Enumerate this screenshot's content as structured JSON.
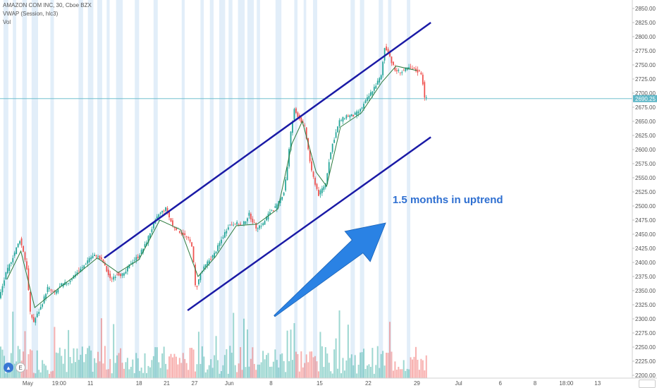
{
  "header": {
    "symbol": "AMAZON COM INC, 30, Cboe BZX",
    "indicator": "VWAP (Session, hlc3)",
    "volume": "Vol"
  },
  "price_tag": "2690.25",
  "annotation": "1.5 months in uptrend",
  "colors": {
    "up": "#26a69a",
    "down": "#ef5350",
    "trendline": "#1a1aa6",
    "arrow": "#2a82e4",
    "vwap": "#2b7a3d",
    "price_line": "#5fb7c7",
    "session_band": "#dbeaf7"
  },
  "chart_data": {
    "type": "candlestick",
    "y_axis": {
      "ticks": [
        "2850.00",
        "2825.00",
        "2800.00",
        "2775.00",
        "2750.00",
        "2725.00",
        "2700.00",
        "2675.00",
        "2650.00",
        "2625.00",
        "2600.00",
        "2575.00",
        "2550.00",
        "2525.00",
        "2500.00",
        "2475.00",
        "2450.00",
        "2425.00",
        "2400.00",
        "2375.00",
        "2350.00",
        "2325.00",
        "2300.00",
        "2275.00",
        "2250.00",
        "2225.00",
        "2200.00"
      ],
      "range": [
        2195,
        2865
      ]
    },
    "x_axis": {
      "ticks": [
        {
          "label": "May",
          "t": 4
        },
        {
          "label": "19:00",
          "t": 8.5
        },
        {
          "label": "11",
          "t": 13
        },
        {
          "label": "18",
          "t": 20
        },
        {
          "label": "21",
          "t": 24
        },
        {
          "label": "27",
          "t": 28
        },
        {
          "label": "Jun",
          "t": 33
        },
        {
          "label": "8",
          "t": 39
        },
        {
          "label": "15",
          "t": 46
        },
        {
          "label": "22",
          "t": 53
        },
        {
          "label": "29",
          "t": 60
        },
        {
          "label": "Jul",
          "t": 66
        },
        {
          "label": "6",
          "t": 72
        },
        {
          "label": "8",
          "t": 77
        },
        {
          "label": "18:00",
          "t": 81.5
        },
        {
          "label": "13",
          "t": 86
        }
      ],
      "range": [
        0,
        91
      ]
    },
    "price_path": [
      {
        "t": 0,
        "p": 2335
      },
      {
        "t": 1,
        "p": 2380
      },
      {
        "t": 2,
        "p": 2410
      },
      {
        "t": 3,
        "p": 2440
      },
      {
        "t": 3.5,
        "p": 2420
      },
      {
        "t": 4,
        "p": 2390
      },
      {
        "t": 4.5,
        "p": 2310
      },
      {
        "t": 5,
        "p": 2295
      },
      {
        "t": 6,
        "p": 2320
      },
      {
        "t": 7,
        "p": 2355
      },
      {
        "t": 8,
        "p": 2345
      },
      {
        "t": 9,
        "p": 2360
      },
      {
        "t": 10,
        "p": 2365
      },
      {
        "t": 11,
        "p": 2380
      },
      {
        "t": 12,
        "p": 2390
      },
      {
        "t": 13,
        "p": 2408
      },
      {
        "t": 14,
        "p": 2413
      },
      {
        "t": 15,
        "p": 2400
      },
      {
        "t": 16,
        "p": 2370
      },
      {
        "t": 17,
        "p": 2380
      },
      {
        "t": 18,
        "p": 2378
      },
      {
        "t": 19,
        "p": 2400
      },
      {
        "t": 20,
        "p": 2410
      },
      {
        "t": 21,
        "p": 2430
      },
      {
        "t": 22,
        "p": 2460
      },
      {
        "t": 23,
        "p": 2485
      },
      {
        "t": 24,
        "p": 2495
      },
      {
        "t": 25,
        "p": 2465
      },
      {
        "t": 26,
        "p": 2455
      },
      {
        "t": 27,
        "p": 2445
      },
      {
        "t": 27.8,
        "p": 2430
      },
      {
        "t": 28.3,
        "p": 2350
      },
      {
        "t": 29,
        "p": 2380
      },
      {
        "t": 30,
        "p": 2400
      },
      {
        "t": 31,
        "p": 2415
      },
      {
        "t": 32,
        "p": 2440
      },
      {
        "t": 33,
        "p": 2465
      },
      {
        "t": 34,
        "p": 2470
      },
      {
        "t": 35,
        "p": 2465
      },
      {
        "t": 36,
        "p": 2485
      },
      {
        "t": 37,
        "p": 2462
      },
      {
        "t": 38,
        "p": 2468
      },
      {
        "t": 39,
        "p": 2490
      },
      {
        "t": 40,
        "p": 2500
      },
      {
        "t": 41,
        "p": 2525
      },
      {
        "t": 41.5,
        "p": 2570
      },
      {
        "t": 42,
        "p": 2630
      },
      {
        "t": 42.5,
        "p": 2670
      },
      {
        "t": 43,
        "p": 2660
      },
      {
        "t": 44,
        "p": 2640
      },
      {
        "t": 44.5,
        "p": 2600
      },
      {
        "t": 45,
        "p": 2560
      },
      {
        "t": 46,
        "p": 2520
      },
      {
        "t": 47,
        "p": 2540
      },
      {
        "t": 47.5,
        "p": 2580
      },
      {
        "t": 48,
        "p": 2610
      },
      {
        "t": 49,
        "p": 2650
      },
      {
        "t": 50,
        "p": 2660
      },
      {
        "t": 51,
        "p": 2660
      },
      {
        "t": 52,
        "p": 2670
      },
      {
        "t": 53,
        "p": 2690
      },
      {
        "t": 54,
        "p": 2710
      },
      {
        "t": 55,
        "p": 2730
      },
      {
        "t": 55.5,
        "p": 2780
      },
      {
        "t": 56,
        "p": 2775
      },
      {
        "t": 56.5,
        "p": 2755
      },
      {
        "t": 57,
        "p": 2740
      },
      {
        "t": 58,
        "p": 2738
      },
      {
        "t": 59,
        "p": 2745
      },
      {
        "t": 60,
        "p": 2740
      },
      {
        "t": 60.8,
        "p": 2735
      },
      {
        "t": 61.3,
        "p": 2690
      }
    ],
    "vwap": [
      {
        "t": 1,
        "p": 2370
      },
      {
        "t": 3,
        "p": 2420
      },
      {
        "t": 5,
        "p": 2320
      },
      {
        "t": 8,
        "p": 2350
      },
      {
        "t": 11,
        "p": 2378
      },
      {
        "t": 14,
        "p": 2408
      },
      {
        "t": 17,
        "p": 2382
      },
      {
        "t": 20,
        "p": 2405
      },
      {
        "t": 23,
        "p": 2475
      },
      {
        "t": 26,
        "p": 2458
      },
      {
        "t": 28.5,
        "p": 2375
      },
      {
        "t": 31,
        "p": 2410
      },
      {
        "t": 34,
        "p": 2465
      },
      {
        "t": 37,
        "p": 2468
      },
      {
        "t": 40,
        "p": 2495
      },
      {
        "t": 42,
        "p": 2610
      },
      {
        "t": 43.5,
        "p": 2650
      },
      {
        "t": 45.5,
        "p": 2560
      },
      {
        "t": 47,
        "p": 2535
      },
      {
        "t": 49,
        "p": 2640
      },
      {
        "t": 52,
        "p": 2665
      },
      {
        "t": 55,
        "p": 2720
      },
      {
        "t": 57,
        "p": 2748
      },
      {
        "t": 60,
        "p": 2740
      }
    ],
    "last_price": 2690.25,
    "trendlines": [
      {
        "name": "upper",
        "from": {
          "t": 15,
          "p": 2408
        },
        "to": {
          "t": 62,
          "p": 2825
        }
      },
      {
        "name": "lower",
        "from": {
          "t": 27,
          "p": 2315
        },
        "to": {
          "t": 62,
          "p": 2622
        }
      }
    ],
    "arrow": {
      "from": {
        "t": 39.5,
        "p": 2305
      },
      "to": {
        "t": 55.5,
        "p": 2470
      }
    },
    "annotation_pos": {
      "t": 56.5,
      "p": 2505
    },
    "volume_pane": true,
    "grid": false
  }
}
